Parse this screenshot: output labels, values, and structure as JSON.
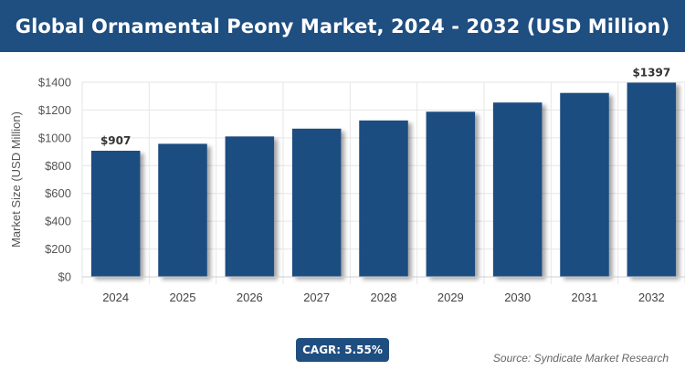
{
  "header": {
    "title": "Global Ornamental Peony Market, 2024 - 2032 (USD Million)"
  },
  "badge": {
    "cagr": "CAGR: 5.55%"
  },
  "footer": {
    "source": "Source: Syndicate Market Research"
  },
  "colors": {
    "bar": "#1f4e81",
    "header_bg": "#1f4e81",
    "grid": "#e6e6e6"
  },
  "chart_data": {
    "type": "bar",
    "categories": [
      "2024",
      "2025",
      "2026",
      "2027",
      "2028",
      "2029",
      "2030",
      "2031",
      "2032"
    ],
    "values": [
      907,
      957,
      1010,
      1066,
      1125,
      1188,
      1254,
      1323,
      1397
    ],
    "data_labels": {
      "2024": "$907",
      "2032": "$1397"
    },
    "title": "",
    "xlabel": "",
    "ylabel": "Market Size (USD Million)",
    "ylim": [
      0,
      1400
    ],
    "yticks": [
      0,
      200,
      400,
      600,
      800,
      1000,
      1200,
      1400
    ],
    "ytick_labels": [
      "$0",
      "$200",
      "$400",
      "$600",
      "$800",
      "$1000",
      "$1200",
      "$1400"
    ],
    "grid": true,
    "legend": "none"
  }
}
